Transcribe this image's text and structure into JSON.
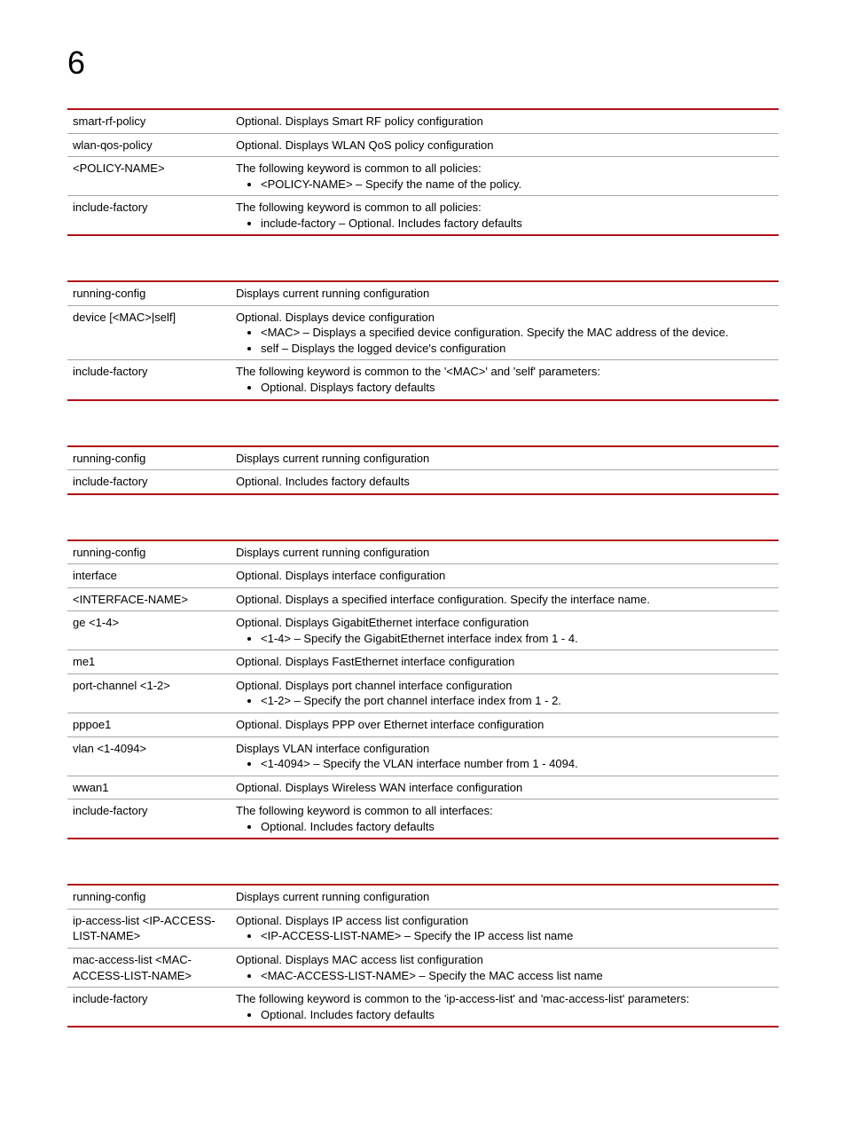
{
  "chapter": "6",
  "colors": {
    "accent": "#b11116",
    "row_border": "#a7a7a7",
    "text": "#000000",
    "background": "#ffffff"
  },
  "typography": {
    "chapter_fontsize": 36,
    "body_fontsize": 13,
    "font_family": "Arial"
  },
  "tables": [
    {
      "rows": [
        {
          "key": "smart-rf-policy",
          "desc": "Optional. Displays Smart RF policy configuration",
          "bullets": []
        },
        {
          "key": "wlan-qos-policy",
          "desc": "Optional. Displays WLAN QoS policy configuration",
          "bullets": []
        },
        {
          "key": "<POLICY-NAME>",
          "desc": "The following keyword is common to all policies:",
          "bullets": [
            "<POLICY-NAME> – Specify the name of the policy."
          ]
        },
        {
          "key": "include-factory",
          "desc": "The following keyword is common to all policies:",
          "bullets": [
            "include-factory – Optional. Includes factory defaults"
          ]
        }
      ]
    },
    {
      "rows": [
        {
          "key": "running-config",
          "desc": "Displays current running configuration",
          "bullets": []
        },
        {
          "key": "device [<MAC>|self]",
          "desc": "Optional. Displays device configuration",
          "bullets": [
            "<MAC> – Displays a specified device configuration. Specify the MAC address of the device.",
            "self – Displays the logged device's configuration"
          ]
        },
        {
          "key": "include-factory",
          "desc": "The following keyword is common to the '<MAC>' and 'self' parameters:",
          "bullets": [
            "Optional. Displays factory defaults"
          ]
        }
      ]
    },
    {
      "rows": [
        {
          "key": "running-config",
          "desc": "Displays current running configuration",
          "bullets": []
        },
        {
          "key": "include-factory",
          "desc": "Optional. Includes factory defaults",
          "bullets": []
        }
      ]
    },
    {
      "rows": [
        {
          "key": "running-config",
          "desc": "Displays current running configuration",
          "bullets": []
        },
        {
          "key": "interface",
          "desc": "Optional. Displays interface configuration",
          "bullets": []
        },
        {
          "key": "<INTERFACE-NAME>",
          "desc": "Optional. Displays a specified interface configuration. Specify the interface name.",
          "bullets": []
        },
        {
          "key": "ge <1-4>",
          "desc": "Optional. Displays GigabitEthernet interface configuration",
          "bullets": [
            "<1-4> – Specify the GigabitEthernet interface index from 1 - 4."
          ]
        },
        {
          "key": "me1",
          "desc": "Optional. Displays FastEthernet interface configuration",
          "bullets": []
        },
        {
          "key": "port-channel <1-2>",
          "desc": "Optional. Displays port channel interface configuration",
          "bullets": [
            "<1-2> – Specify the port channel interface index from 1 - 2."
          ]
        },
        {
          "key": "pppoe1",
          "desc": "Optional. Displays PPP over Ethernet interface configuration",
          "bullets": []
        },
        {
          "key": "vlan <1-4094>",
          "desc": "Displays VLAN interface configuration",
          "bullets": [
            "<1-4094> – Specify the VLAN interface number from 1 - 4094."
          ]
        },
        {
          "key": "wwan1",
          "desc": "Optional. Displays Wireless WAN interface configuration",
          "bullets": []
        },
        {
          "key": "include-factory",
          "desc": "The following keyword is common to all interfaces:",
          "bullets": [
            "Optional. Includes factory defaults"
          ]
        }
      ]
    },
    {
      "rows": [
        {
          "key": "running-config",
          "desc": "Displays current running configuration",
          "bullets": []
        },
        {
          "key": "ip-access-list <IP-ACCESS-LIST-NAME>",
          "desc": "Optional. Displays IP access list configuration",
          "bullets": [
            "<IP-ACCESS-LIST-NAME> – Specify the IP access list name"
          ]
        },
        {
          "key": "mac-access-list <MAC-ACCESS-LIST-NAME>",
          "desc": "Optional. Displays MAC access list configuration",
          "bullets": [
            "<MAC-ACCESS-LIST-NAME> – Specify the MAC access list name"
          ]
        },
        {
          "key": "include-factory",
          "desc": "The following keyword is common to the 'ip-access-list' and 'mac-access-list' parameters:",
          "bullets": [
            "Optional. Includes factory defaults"
          ]
        }
      ]
    }
  ]
}
